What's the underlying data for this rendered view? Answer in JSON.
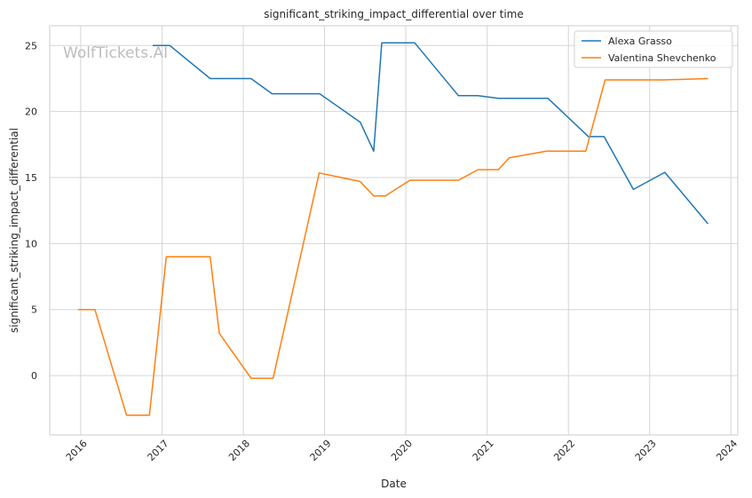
{
  "chart_data": {
    "type": "line",
    "title": "significant_striking_impact_differential over time",
    "xlabel": "Date",
    "ylabel": "significant_striking_impact_differential",
    "watermark": "WolfTickets.AI",
    "xlim": [
      "2015-08-15",
      "2024-02-01"
    ],
    "ylim": [
      -4.5,
      26.5
    ],
    "x_ticks": [
      "2016",
      "2017",
      "2018",
      "2019",
      "2020",
      "2021",
      "2022",
      "2023",
      "2024"
    ],
    "y_ticks": [
      0,
      5,
      10,
      15,
      20,
      25
    ],
    "grid": true,
    "legend_position": "top-right",
    "series": [
      {
        "name": "Alexa Grasso",
        "color": "#1f77b4",
        "points": [
          [
            "2016-11-20",
            25.0
          ],
          [
            "2017-02-05",
            25.0
          ],
          [
            "2017-08-05",
            22.5
          ],
          [
            "2018-02-05",
            22.5
          ],
          [
            "2018-05-10",
            21.35
          ],
          [
            "2018-12-10",
            21.35
          ],
          [
            "2019-06-10",
            19.2
          ],
          [
            "2019-08-10",
            17.0
          ],
          [
            "2019-09-15",
            25.2
          ],
          [
            "2020-02-10",
            25.2
          ],
          [
            "2020-08-25",
            21.2
          ],
          [
            "2020-11-20",
            21.2
          ],
          [
            "2021-02-20",
            21.0
          ],
          [
            "2021-10-01",
            21.0
          ],
          [
            "2022-04-01",
            18.1
          ],
          [
            "2022-06-10",
            18.1
          ],
          [
            "2022-10-20",
            14.1
          ],
          [
            "2023-03-10",
            15.4
          ],
          [
            "2023-09-20",
            11.5
          ]
        ]
      },
      {
        "name": "Valentina Shevchenko",
        "color": "#ff7f0e",
        "points": [
          [
            "2015-12-20",
            5.0
          ],
          [
            "2016-03-05",
            5.0
          ],
          [
            "2016-07-25",
            -3.0
          ],
          [
            "2016-11-05",
            -3.0
          ],
          [
            "2017-01-20",
            9.0
          ],
          [
            "2017-08-05",
            9.0
          ],
          [
            "2017-09-15",
            3.2
          ],
          [
            "2018-02-05",
            -0.2
          ],
          [
            "2018-05-15",
            -0.2
          ],
          [
            "2018-12-08",
            15.35
          ],
          [
            "2019-06-10",
            14.7
          ],
          [
            "2019-08-10",
            13.6
          ],
          [
            "2019-10-01",
            13.6
          ],
          [
            "2020-01-20",
            14.8
          ],
          [
            "2020-08-25",
            14.8
          ],
          [
            "2020-11-21",
            15.6
          ],
          [
            "2021-02-20",
            15.6
          ],
          [
            "2021-04-10",
            16.5
          ],
          [
            "2021-09-25",
            17.0
          ],
          [
            "2022-03-20",
            17.0
          ],
          [
            "2022-06-15",
            22.4
          ],
          [
            "2023-03-05",
            22.4
          ],
          [
            "2023-09-20",
            22.5
          ]
        ]
      }
    ]
  }
}
